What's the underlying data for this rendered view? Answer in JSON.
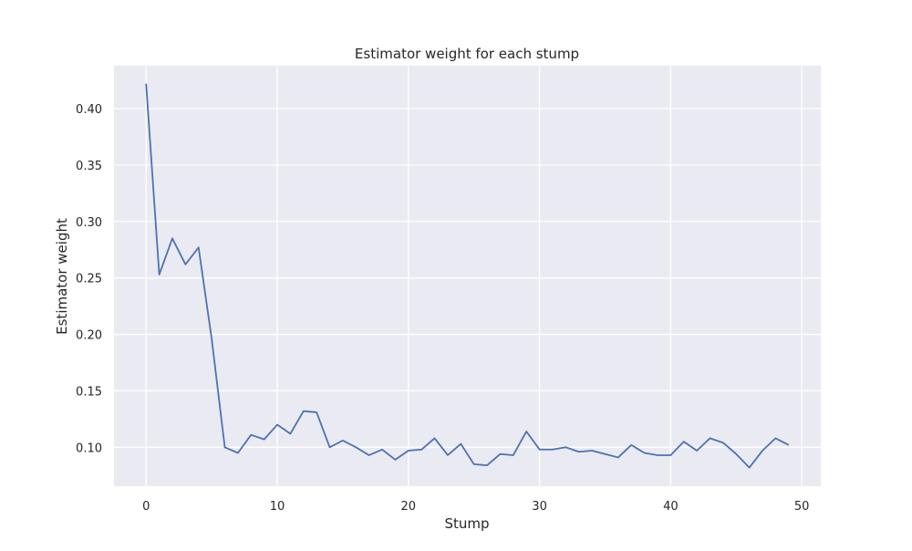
{
  "chart_data": {
    "type": "line",
    "title": "Estimator weight for each stump",
    "xlabel": "Stump",
    "ylabel": "Estimator weight",
    "xlim": [
      -2.45,
      51.45
    ],
    "ylim": [
      0.0655,
      0.438
    ],
    "xticks": [
      0,
      10,
      20,
      30,
      40,
      50
    ],
    "xtick_labels": [
      "0",
      "10",
      "20",
      "30",
      "40",
      "50"
    ],
    "yticks": [
      0.1,
      0.15,
      0.2,
      0.25,
      0.3,
      0.35,
      0.4
    ],
    "ytick_labels": [
      "0.10",
      "0.15",
      "0.20",
      "0.25",
      "0.30",
      "0.35",
      "0.40"
    ],
    "grid": true,
    "background_color": "#eaeaf2",
    "grid_color": "#ffffff",
    "series": [
      {
        "color": "#4c72b0",
        "x": [
          0,
          1,
          2,
          3,
          4,
          5,
          6,
          7,
          8,
          9,
          10,
          11,
          12,
          13,
          14,
          15,
          16,
          17,
          18,
          19,
          20,
          21,
          22,
          23,
          24,
          25,
          26,
          27,
          28,
          29,
          30,
          31,
          32,
          33,
          34,
          35,
          36,
          37,
          38,
          39,
          40,
          41,
          42,
          43,
          44,
          45,
          46,
          47,
          48,
          49
        ],
        "y": [
          0.422,
          0.253,
          0.285,
          0.262,
          0.277,
          0.196,
          0.1,
          0.095,
          0.111,
          0.107,
          0.12,
          0.112,
          0.132,
          0.131,
          0.1,
          0.106,
          0.1,
          0.093,
          0.098,
          0.089,
          0.097,
          0.098,
          0.108,
          0.093,
          0.103,
          0.085,
          0.084,
          0.094,
          0.093,
          0.114,
          0.098,
          0.098,
          0.1,
          0.096,
          0.097,
          0.094,
          0.091,
          0.102,
          0.095,
          0.093,
          0.093,
          0.105,
          0.097,
          0.108,
          0.104,
          0.094,
          0.082,
          0.097,
          0.108,
          0.102
        ]
      }
    ]
  }
}
